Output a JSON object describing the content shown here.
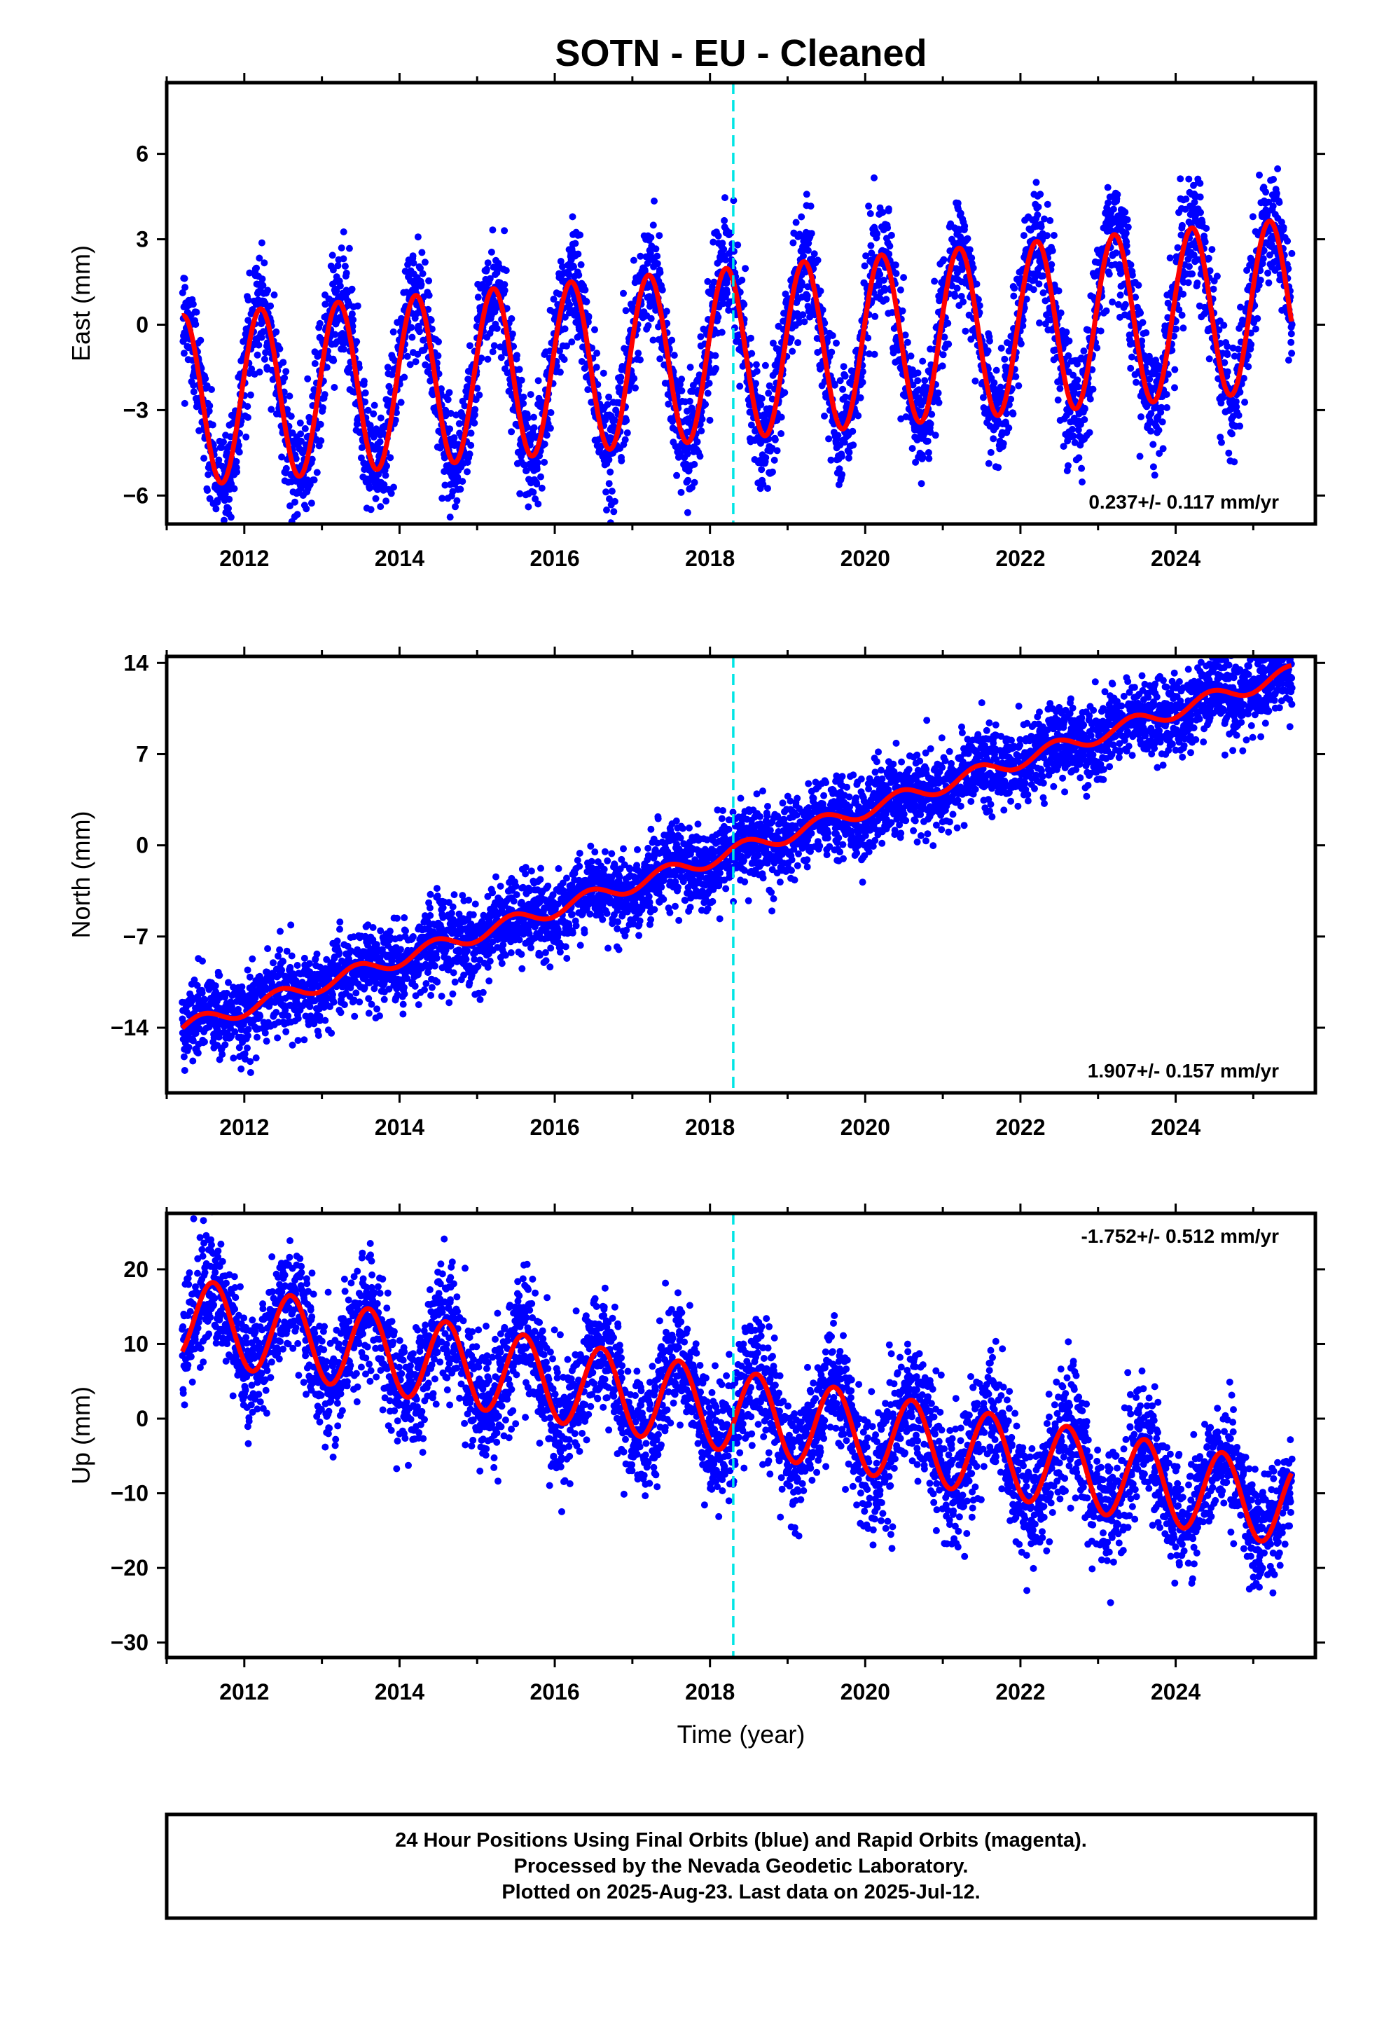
{
  "title": "SOTN  - EU - Cleaned",
  "footer": {
    "line1": "24 Hour Positions Using Final Orbits (blue) and Rapid Orbits (magenta).",
    "line2": "Processed by the Nevada Geodetic Laboratory.",
    "line3": "Plotted on 2025-Aug-23. Last data on 2025-Jul-12."
  },
  "colors": {
    "points": "#0000ff",
    "fit": "#ff0000",
    "event_line": "#00e5e5",
    "frame": "#000000"
  },
  "chart_data": [
    {
      "type": "scatter",
      "ylabel": "East (mm)",
      "xlabel": "",
      "xlim": [
        2011.0,
        2025.8
      ],
      "ylim": [
        -7.0,
        8.5
      ],
      "xticks": [
        "2012",
        "2014",
        "2016",
        "2018",
        "2020",
        "2022",
        "2024"
      ],
      "yticks": [
        "6",
        "3",
        "0",
        "-3",
        "-6"
      ],
      "rate_label": "0.237+/- 0.117 mm/yr",
      "rate_position": "bottom-right",
      "event_line_x": 2018.3,
      "series": [
        {
          "name": "",
          "kind": "points",
          "x_range": [
            2011.2,
            2025.5
          ],
          "trend": 0.237,
          "offset": -1.0,
          "amplitude": 3.0,
          "phase": -0.04,
          "scatter": 1.0
        },
        {
          "name": "",
          "kind": "fit",
          "x_range": [
            2011.2,
            2025.5
          ],
          "trend": 0.237,
          "offset": -1.0,
          "amplitude": 3.0,
          "phase": -0.04
        }
      ]
    },
    {
      "type": "scatter",
      "ylabel": "North (mm)",
      "xlabel": "",
      "xlim": [
        2011.0,
        2025.8
      ],
      "ylim": [
        -19.0,
        14.5
      ],
      "xticks": [
        "2012",
        "2014",
        "2016",
        "2018",
        "2020",
        "2022",
        "2024"
      ],
      "yticks": [
        "14",
        "7",
        "0",
        "-7",
        "-14"
      ],
      "rate_label": "1.907+/- 0.157 mm/yr",
      "rate_position": "bottom-right",
      "event_line_x": 2018.3,
      "series": [
        {
          "name": "",
          "kind": "points",
          "x_range": [
            2011.2,
            2025.5
          ],
          "trend": 1.907,
          "offset": -0.5,
          "amplitude": 0.6,
          "phase": 0.2,
          "scatter": 1.5
        },
        {
          "name": "",
          "kind": "fit",
          "x_range": [
            2011.2,
            2025.5
          ],
          "trend": 1.907,
          "offset": -0.5,
          "amplitude": 0.6,
          "phase": 0.2
        }
      ]
    },
    {
      "type": "scatter",
      "ylabel": "Up (mm)",
      "xlabel": "Time (year)",
      "xlim": [
        2011.0,
        2025.8
      ],
      "ylim": [
        -32.0,
        27.5
      ],
      "xticks": [
        "2012",
        "2014",
        "2016",
        "2018",
        "2020",
        "2022",
        "2024"
      ],
      "yticks": [
        "20",
        "10",
        "0",
        "-10",
        "-20",
        "-30"
      ],
      "rate_label": "-1.752+/- 0.512 mm/yr",
      "rate_position": "top-right",
      "event_line_x": 2018.3,
      "series": [
        {
          "name": "",
          "kind": "points",
          "x_range": [
            2011.2,
            2025.5
          ],
          "trend": -1.752,
          "offset": 1.0,
          "amplitude": 5.5,
          "phase": 0.35,
          "scatter": 4.0
        },
        {
          "name": "",
          "kind": "fit",
          "x_range": [
            2011.2,
            2025.5
          ],
          "trend": -1.752,
          "offset": 1.0,
          "amplitude": 5.5,
          "phase": 0.35
        }
      ]
    }
  ]
}
